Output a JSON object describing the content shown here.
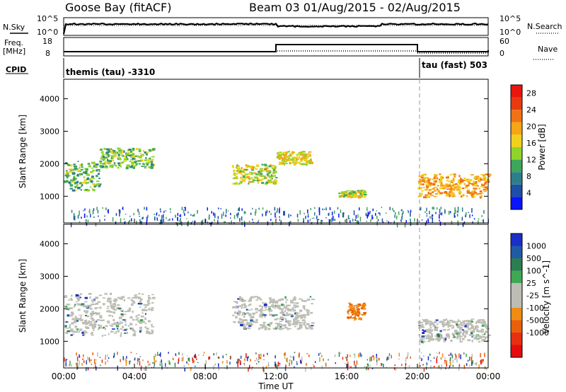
{
  "header": {
    "station": "Goose Bay (fitACF)",
    "beam_date": "Beam 03 01/Aug/2015 - 02/Aug/2015"
  },
  "strips": {
    "nsky_label": "N.Sky",
    "nsky_ticks": [
      "10^5",
      "10^0"
    ],
    "nsearch_label": "N.Search",
    "nsearch_ticks": [
      "10^5",
      "10^0"
    ],
    "freq_label_1": "Freq.",
    "freq_label_2": "[MHz]",
    "freq_ticks": [
      "18",
      "8"
    ],
    "nave_label": "Nave",
    "nave_ticks": [
      "60",
      "0"
    ],
    "cpid_label": "CPID",
    "cpid_segments": [
      {
        "label": "themis (tau) -3310",
        "start_hour": 0
      },
      {
        "label": "tau (fast) 503",
        "start_hour": 20
      }
    ]
  },
  "axes": {
    "x_ticks": [
      "00:00",
      "04:00",
      "08:00",
      "12:00",
      "16:00",
      "20:00",
      "00:00"
    ],
    "x_label": "Time UT",
    "y_label": "Slant Range [km]",
    "y_ticks": [
      "1000",
      "2000",
      "3000",
      "4000"
    ]
  },
  "colorbars": {
    "power_label": "Power [dB]",
    "power_ticks": [
      "4",
      "8",
      "12",
      "16",
      "20",
      "24",
      "28"
    ],
    "power_colors": [
      "#0a14ff",
      "#1e4fa8",
      "#2c7f8a",
      "#3ea65a",
      "#8fd42a",
      "#f0d21e",
      "#f5a614",
      "#f07214",
      "#e83a10",
      "#e8160c"
    ],
    "velocity_label": "Velocity [m s^-1]",
    "velocity_ticks": [
      "1000",
      "500",
      "100",
      "25",
      "-25",
      "-100",
      "-500",
      "-1000"
    ],
    "velocity_colors": [
      "#1a2ec8",
      "#1f5aa6",
      "#2d7d52",
      "#3ea852",
      "#bdbdb5",
      "#bdbdb5",
      "#f08c14",
      "#e8600c",
      "#e83010",
      "#e60c0c"
    ]
  },
  "chart_data": [
    {
      "type": "heatmap",
      "title": "Power",
      "xlabel": "Time UT",
      "ylabel": "Slant Range [km]",
      "xlim": [
        "01/Aug/2015 00:00",
        "02/Aug/2015 00:00"
      ],
      "ylim": [
        180,
        4600
      ],
      "colorbar": {
        "label": "Power [dB]",
        "range": [
          0,
          30
        ]
      },
      "regions": [
        {
          "t_start": "00:00",
          "t_end": "02:00",
          "range_km": [
            1200,
            2100
          ],
          "power_db": 10
        },
        {
          "t_start": "02:00",
          "t_end": "05:00",
          "range_km": [
            1900,
            2500
          ],
          "power_db": 11
        },
        {
          "t_start": "09:30",
          "t_end": "12:00",
          "range_km": [
            1400,
            2000
          ],
          "power_db": 14
        },
        {
          "t_start": "12:00",
          "t_end": "14:00",
          "range_km": [
            2000,
            2400
          ],
          "power_db": 15
        },
        {
          "t_start": "15:30",
          "t_end": "17:00",
          "range_km": [
            1000,
            1200
          ],
          "power_db": 13
        },
        {
          "t_start": "20:00",
          "t_end": "24:00",
          "range_km": [
            1000,
            1700
          ],
          "power_db": 18
        }
      ]
    },
    {
      "type": "heatmap",
      "title": "Velocity",
      "xlabel": "Time UT",
      "ylabel": "Slant Range [km]",
      "xlim": [
        "01/Aug/2015 00:00",
        "02/Aug/2015 00:00"
      ],
      "ylim": [
        180,
        4600
      ],
      "colorbar": {
        "label": "Velocity [m s^-1]",
        "range": [
          -1000,
          1000
        ]
      },
      "regions": [
        {
          "t_start": "00:00",
          "t_end": "05:00",
          "range_km": [
            1200,
            2500
          ],
          "velocity_ms": 0
        },
        {
          "t_start": "09:30",
          "t_end": "14:00",
          "range_km": [
            1400,
            2400
          ],
          "velocity_ms": 0
        },
        {
          "t_start": "16:00",
          "t_end": "17:00",
          "range_km": [
            1700,
            2200
          ],
          "velocity_ms": -300
        },
        {
          "t_start": "20:00",
          "t_end": "24:00",
          "range_km": [
            1000,
            1700
          ],
          "velocity_ms": 0
        }
      ]
    }
  ]
}
